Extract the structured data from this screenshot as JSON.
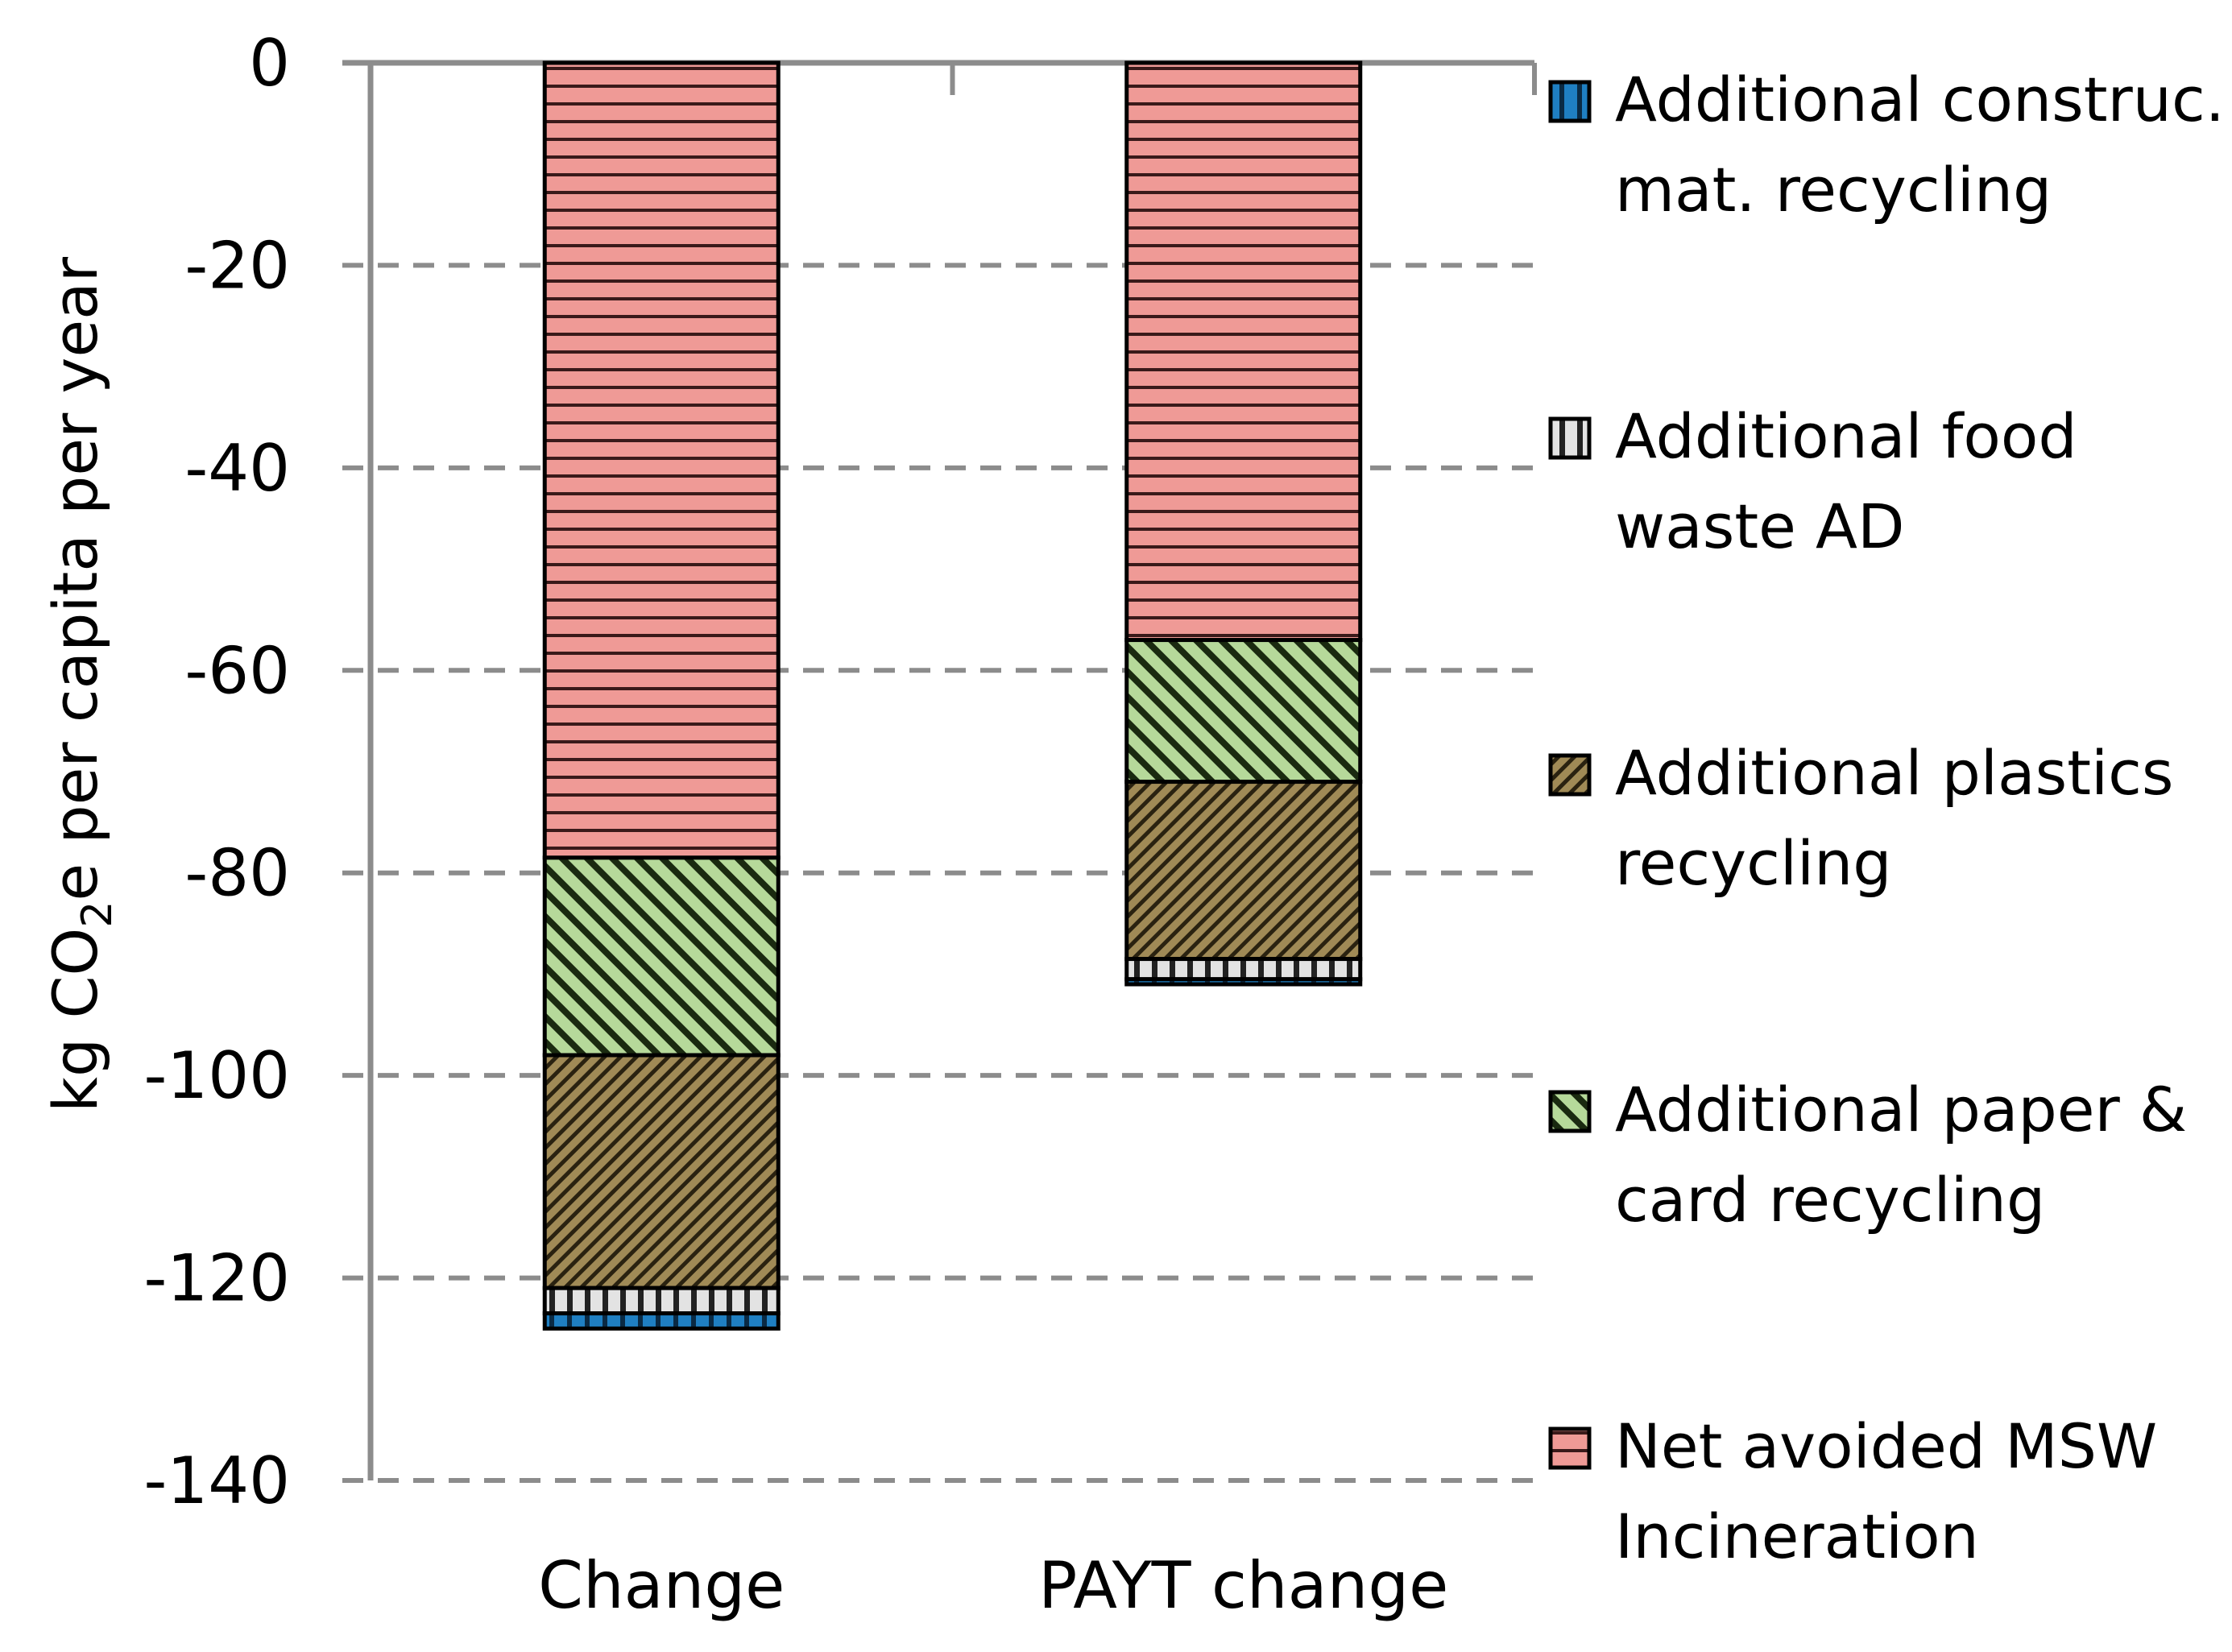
{
  "chart_data": {
    "type": "bar",
    "stacked": true,
    "categories": [
      "Change",
      "PAYT change"
    ],
    "ylabel": "kg CO2e per capita per year",
    "ylabel_parts": {
      "pre": "kg CO",
      "sub": "2",
      "post": "e per capita per year"
    },
    "ylim": [
      -140,
      0
    ],
    "yticks": [
      0,
      -20,
      -40,
      -60,
      -80,
      -100,
      -120,
      -140
    ],
    "grid": true,
    "legend_position": "right",
    "series": [
      {
        "name": "Net avoided MSW Incineration",
        "legend_lines": [
          "Net avoided MSW",
          "Incineration"
        ],
        "values": [
          -78.5,
          -57.0
        ],
        "color": "#ef9a96",
        "pattern": "horizontal-lines"
      },
      {
        "name": "Additional paper & card recycling",
        "legend_lines": [
          "Additional paper &",
          "card recycling"
        ],
        "values": [
          -19.5,
          -14.0
        ],
        "color": "#b6d99a",
        "pattern": "diagonal-lines"
      },
      {
        "name": "Additional plastics recycling",
        "legend_lines": [
          "Additional plastics",
          "recycling"
        ],
        "values": [
          -23.0,
          -17.5
        ],
        "color": "#8f7c4e",
        "pattern": "diagonal-lines"
      },
      {
        "name": "Additional food waste AD",
        "legend_lines": [
          "Additional food",
          "waste AD"
        ],
        "values": [
          -2.5,
          -2.0
        ],
        "color": "#d9d9d9",
        "pattern": "vertical-lines"
      },
      {
        "name": "Additional construc. mat. recycling",
        "legend_lines": [
          "Additional construc.",
          "mat. recycling"
        ],
        "values": [
          -1.5,
          -0.5
        ],
        "color": "#1f7fc2",
        "pattern": "solid"
      }
    ]
  }
}
